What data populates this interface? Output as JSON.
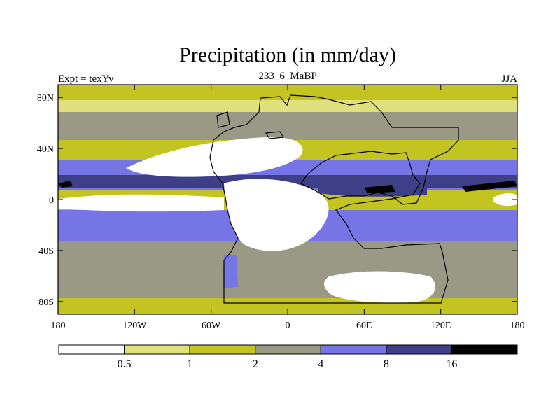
{
  "chart_data": {
    "type": "heatmap",
    "title": "Precipitation (in mm/day)",
    "left_label": "Expt = texYv",
    "center_label": "233_6_MaBP",
    "right_label": "JJA",
    "xlim": [
      -180,
      180
    ],
    "ylim": [
      -90,
      90
    ],
    "x_ticks": [
      {
        "value": -180,
        "label": "180"
      },
      {
        "value": -120,
        "label": "120W"
      },
      {
        "value": -60,
        "label": "60W"
      },
      {
        "value": 0,
        "label": "0"
      },
      {
        "value": 60,
        "label": "60E"
      },
      {
        "value": 120,
        "label": "120E"
      },
      {
        "value": 180,
        "label": "180"
      }
    ],
    "y_ticks": [
      {
        "value": 80,
        "label": "80N"
      },
      {
        "value": 40,
        "label": "40N"
      },
      {
        "value": 0,
        "label": "0"
      },
      {
        "value": -40,
        "label": "40S"
      },
      {
        "value": -80,
        "label": "80S"
      }
    ],
    "colorbar": {
      "boundaries": [
        "0.5",
        "1",
        "2",
        "4",
        "8",
        "16"
      ],
      "colors": [
        "#ffffff",
        "#e0e07c",
        "#c3c322",
        "#999985",
        "#7575e6",
        "#3f3f88",
        "#000000"
      ]
    },
    "colors": {
      "c0": "#ffffff",
      "c1": "#e0e07c",
      "c2": "#c3c322",
      "c3": "#999985",
      "c4": "#7575e6",
      "c5": "#3f3f88",
      "c6": "#000000"
    }
  }
}
